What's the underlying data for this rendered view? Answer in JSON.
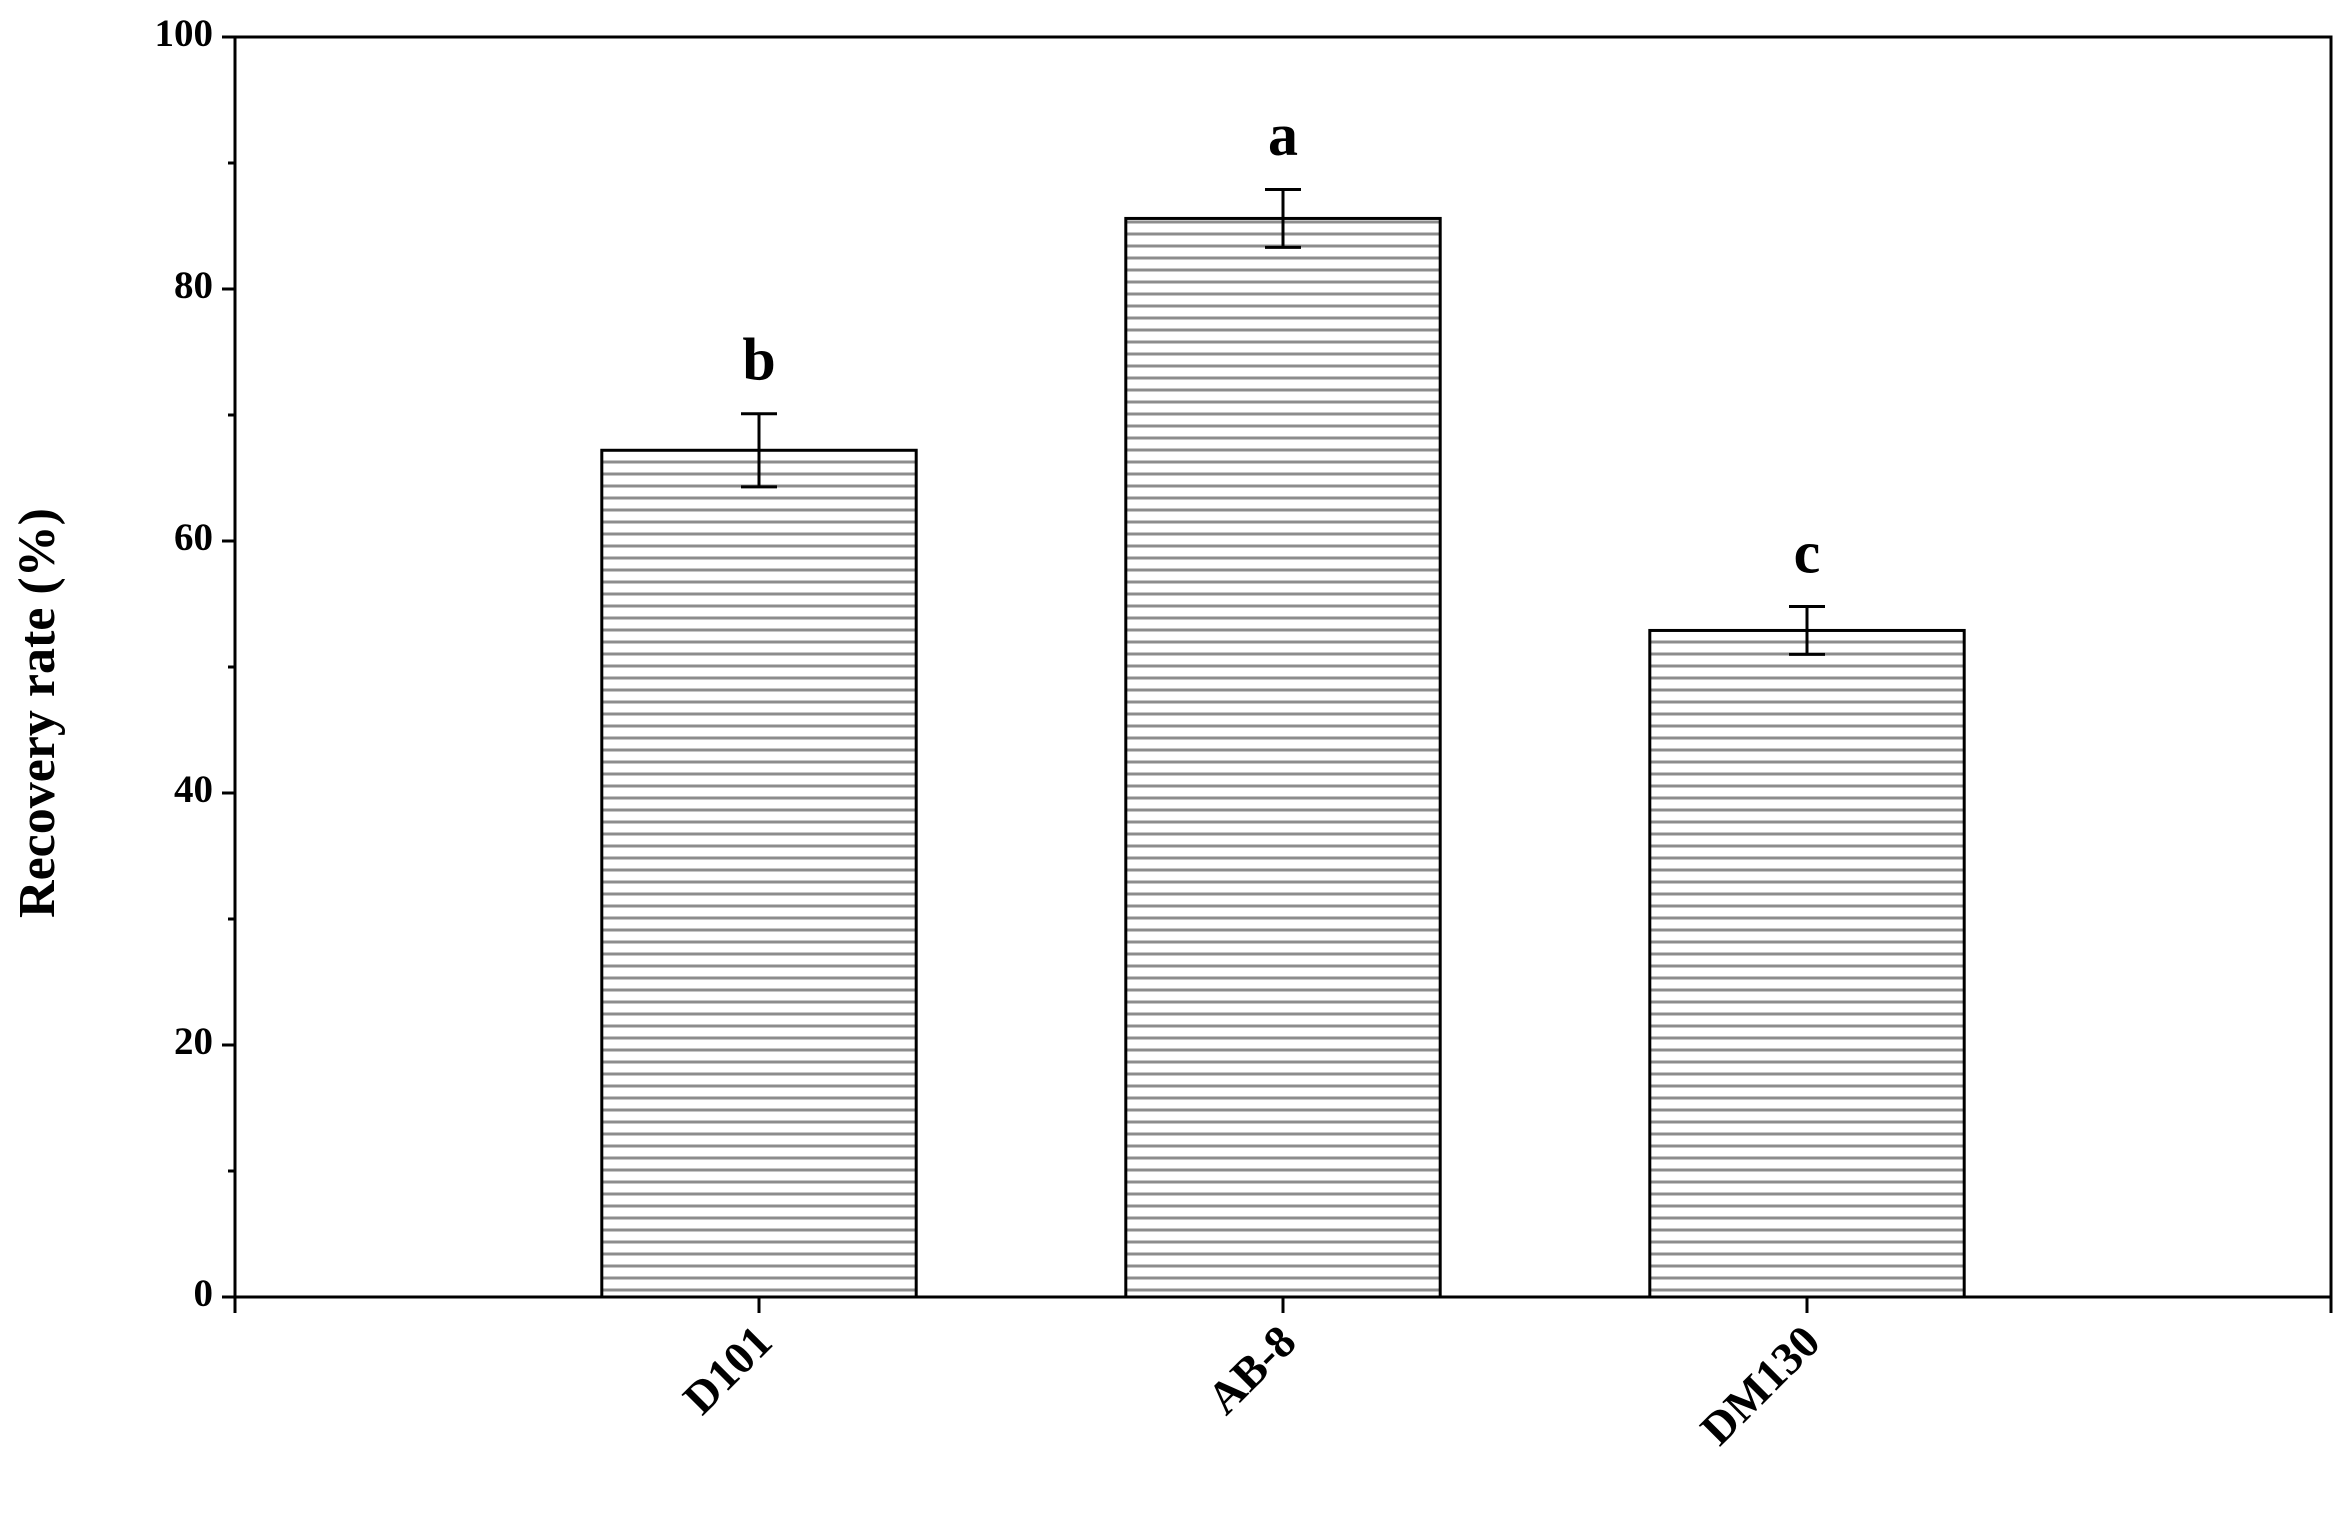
{
  "chart_data": {
    "type": "bar",
    "y_label": "Recovery rate (%)",
    "categories": [
      "D101",
      "AB-8",
      "DM130"
    ],
    "values": [
      67.2,
      85.6,
      52.9
    ],
    "errors": [
      2.9,
      2.3,
      1.9
    ],
    "group_labels": [
      "b",
      "a",
      "c"
    ],
    "color": "#8c8c8c",
    "ylim": [
      0,
      100
    ],
    "yticks": [
      0,
      20,
      40,
      60,
      80,
      100
    ],
    "grid": false
  }
}
